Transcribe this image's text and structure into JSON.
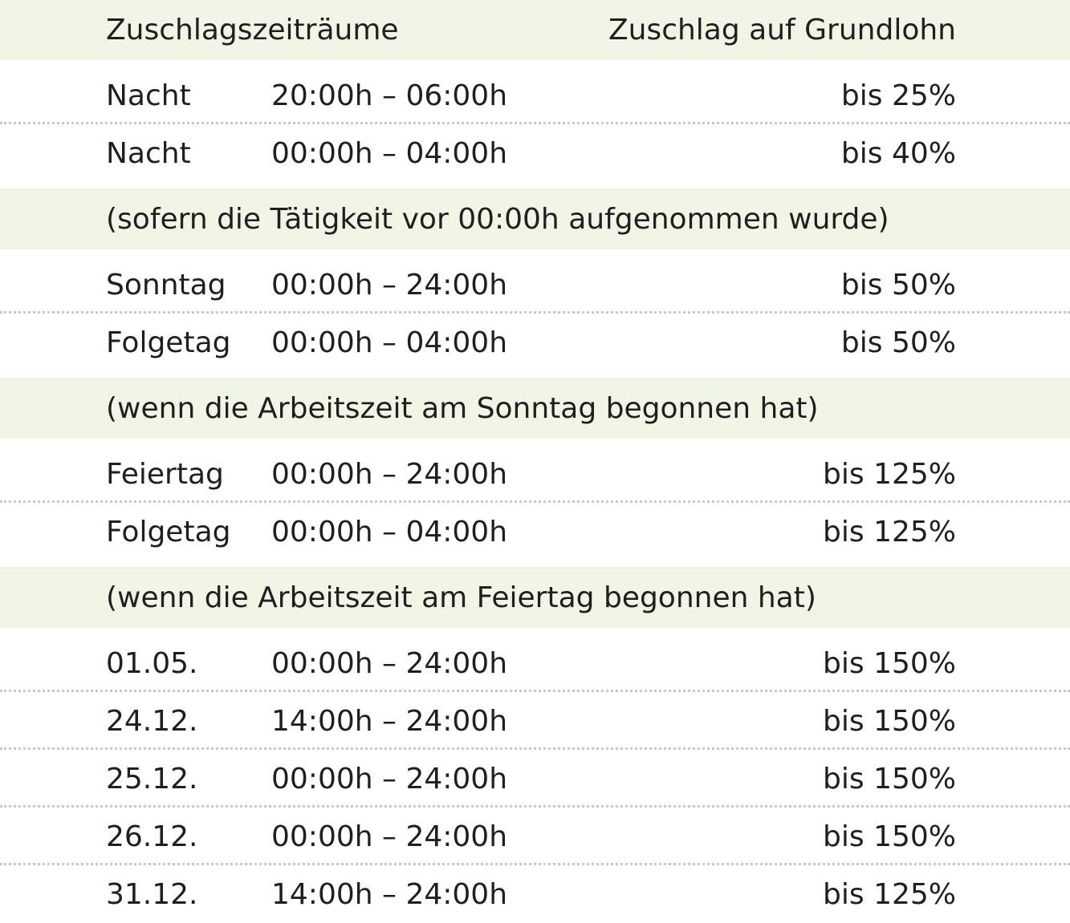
{
  "header": {
    "left": "Zuschlagszeiträume",
    "right": "Zuschlag auf Grundlohn"
  },
  "groups": [
    {
      "rows": [
        {
          "label": "Nacht",
          "time": "20:00h – 06:00h",
          "pct": "bis 25%"
        },
        {
          "label": "Nacht",
          "time": "00:00h – 04:00h",
          "pct": "bis 40%"
        }
      ],
      "note": "(sofern die Tätigkeit vor 00:00h aufgenommen wurde)"
    },
    {
      "rows": [
        {
          "label": "Sonntag",
          "time": "00:00h – 24:00h",
          "pct": "bis 50%"
        },
        {
          "label": "Folgetag",
          "time": "00:00h – 04:00h",
          "pct": "bis 50%"
        }
      ],
      "note": "(wenn die Arbeitszeit am Sonntag begonnen hat)"
    },
    {
      "rows": [
        {
          "label": "Feiertag",
          "time": "00:00h – 24:00h",
          "pct": "bis 125%"
        },
        {
          "label": "Folgetag",
          "time": "00:00h – 04:00h",
          "pct": "bis 125%"
        }
      ],
      "note": "(wenn die Arbeitszeit am Feiertag begonnen hat)"
    },
    {
      "rows": [
        {
          "label": "01.05.",
          "time": "00:00h – 24:00h",
          "pct": "bis 150%"
        },
        {
          "label": "24.12.",
          "time": "14:00h – 24:00h",
          "pct": "bis 150%"
        },
        {
          "label": "25.12.",
          "time": "00:00h – 24:00h",
          "pct": "bis 150%"
        },
        {
          "label": "26.12.",
          "time": "00:00h – 24:00h",
          "pct": "bis 150%"
        },
        {
          "label": "31.12.",
          "time": "14:00h – 24:00h",
          "pct": "bis 125%"
        }
      ]
    }
  ]
}
